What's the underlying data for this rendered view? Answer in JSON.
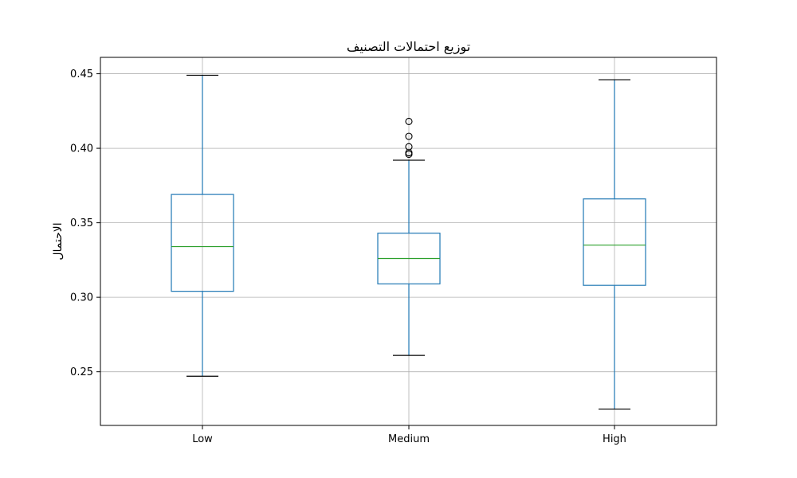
{
  "chart_data": {
    "type": "box",
    "title": "توزيع احتمالات التصنيف",
    "xlabel": "",
    "ylabel": "الاحتمال",
    "ylim": [
      0.214,
      0.461
    ],
    "yticks": [
      0.25,
      0.3,
      0.35,
      0.4,
      0.45
    ],
    "ytick_labels": [
      "0.25",
      "0.30",
      "0.35",
      "0.40",
      "0.45"
    ],
    "grid": true,
    "categories": [
      "Low",
      "Medium",
      "High"
    ],
    "boxes": [
      {
        "category": "Low",
        "whisker_low": 0.247,
        "q1": 0.304,
        "median": 0.334,
        "q3": 0.369,
        "whisker_high": 0.449,
        "outliers": []
      },
      {
        "category": "Medium",
        "whisker_low": 0.261,
        "q1": 0.309,
        "median": 0.326,
        "q3": 0.343,
        "whisker_high": 0.392,
        "outliers": [
          0.396,
          0.397,
          0.401,
          0.408,
          0.418
        ]
      },
      {
        "category": "High",
        "whisker_low": 0.225,
        "q1": 0.308,
        "median": 0.335,
        "q3": 0.366,
        "whisker_high": 0.446,
        "outliers": []
      }
    ],
    "colors": {
      "box": "#1f77b4",
      "median": "#2ca02c",
      "cap": "#000000",
      "grid": "#b0b0b0"
    }
  }
}
